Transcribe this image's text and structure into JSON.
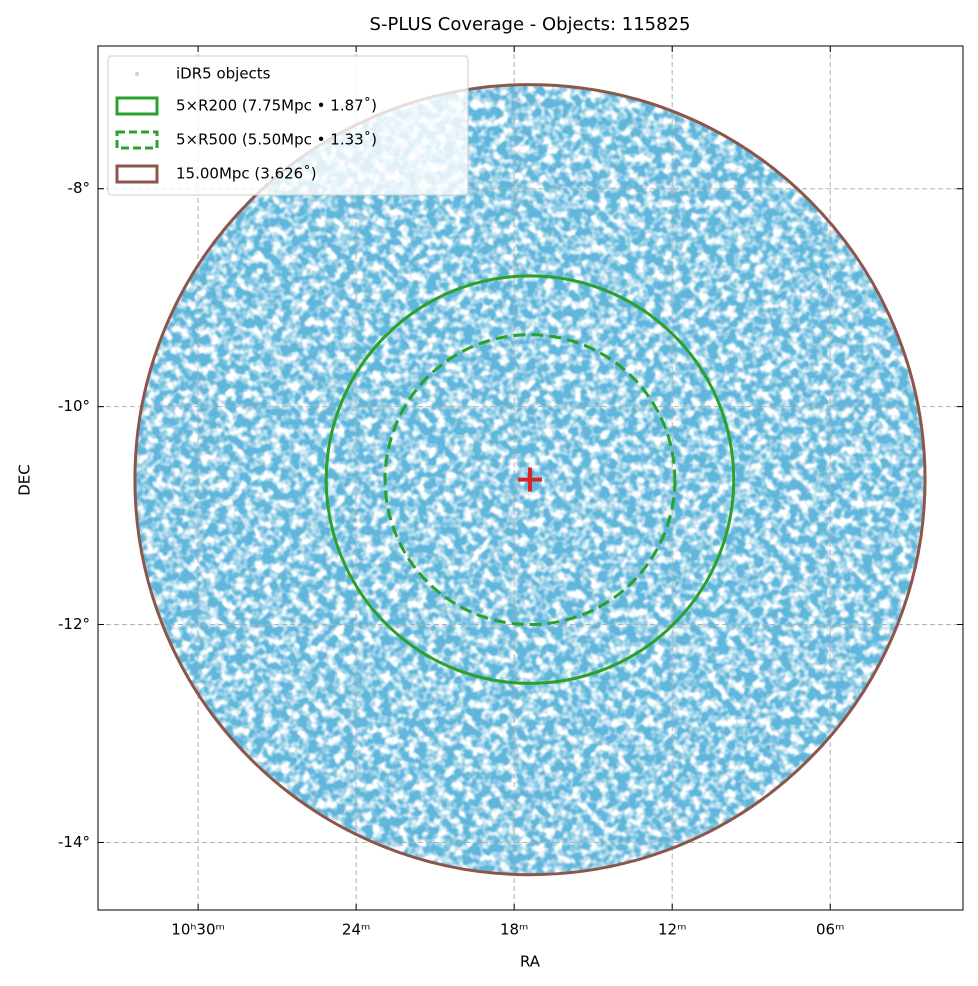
{
  "chart_data": {
    "type": "scatter",
    "title": "S-PLUS Coverage - Objects: 115825",
    "x_label": "RA",
    "y_label": "DEC",
    "xlim": [
      158.45,
      150.24
    ],
    "ylim": [
      -14.62,
      -6.69
    ],
    "xticks": [
      {
        "value": 157.5,
        "label": "10ʰ30ᵐ"
      },
      {
        "value": 156,
        "label": "24ᵐ"
      },
      {
        "value": 154.5,
        "label": "18ᵐ"
      },
      {
        "value": 153,
        "label": "12ᵐ"
      },
      {
        "value": 151.5,
        "label": "06ᵐ"
      }
    ],
    "yticks": [
      {
        "value": -8,
        "label": "-8°"
      },
      {
        "value": -10,
        "label": "-10°"
      },
      {
        "value": -12,
        "label": "-12°"
      },
      {
        "value": -14,
        "label": "-14°"
      }
    ],
    "grid": true,
    "legend": "upper left",
    "objects": {
      "name": "iDR5 objects",
      "color": "#1f77b4"
    },
    "center": {
      "ra": 154.35,
      "dec": -10.67,
      "color": "#d62728"
    },
    "circles": [
      {
        "name": "5×R200 (7.75Mpc • 1.87˚)",
        "radius": 1.87,
        "color": "#2ca02c",
        "style": "solid"
      },
      {
        "name": "5×R500 (5.50Mpc • 1.33˚)",
        "radius": 1.33,
        "color": "#2ca02c",
        "style": "dashed"
      },
      {
        "name": "15.00Mpc (3.626˚)",
        "radius": 3.626,
        "color": "#8c564b",
        "style": "solid"
      }
    ]
  }
}
